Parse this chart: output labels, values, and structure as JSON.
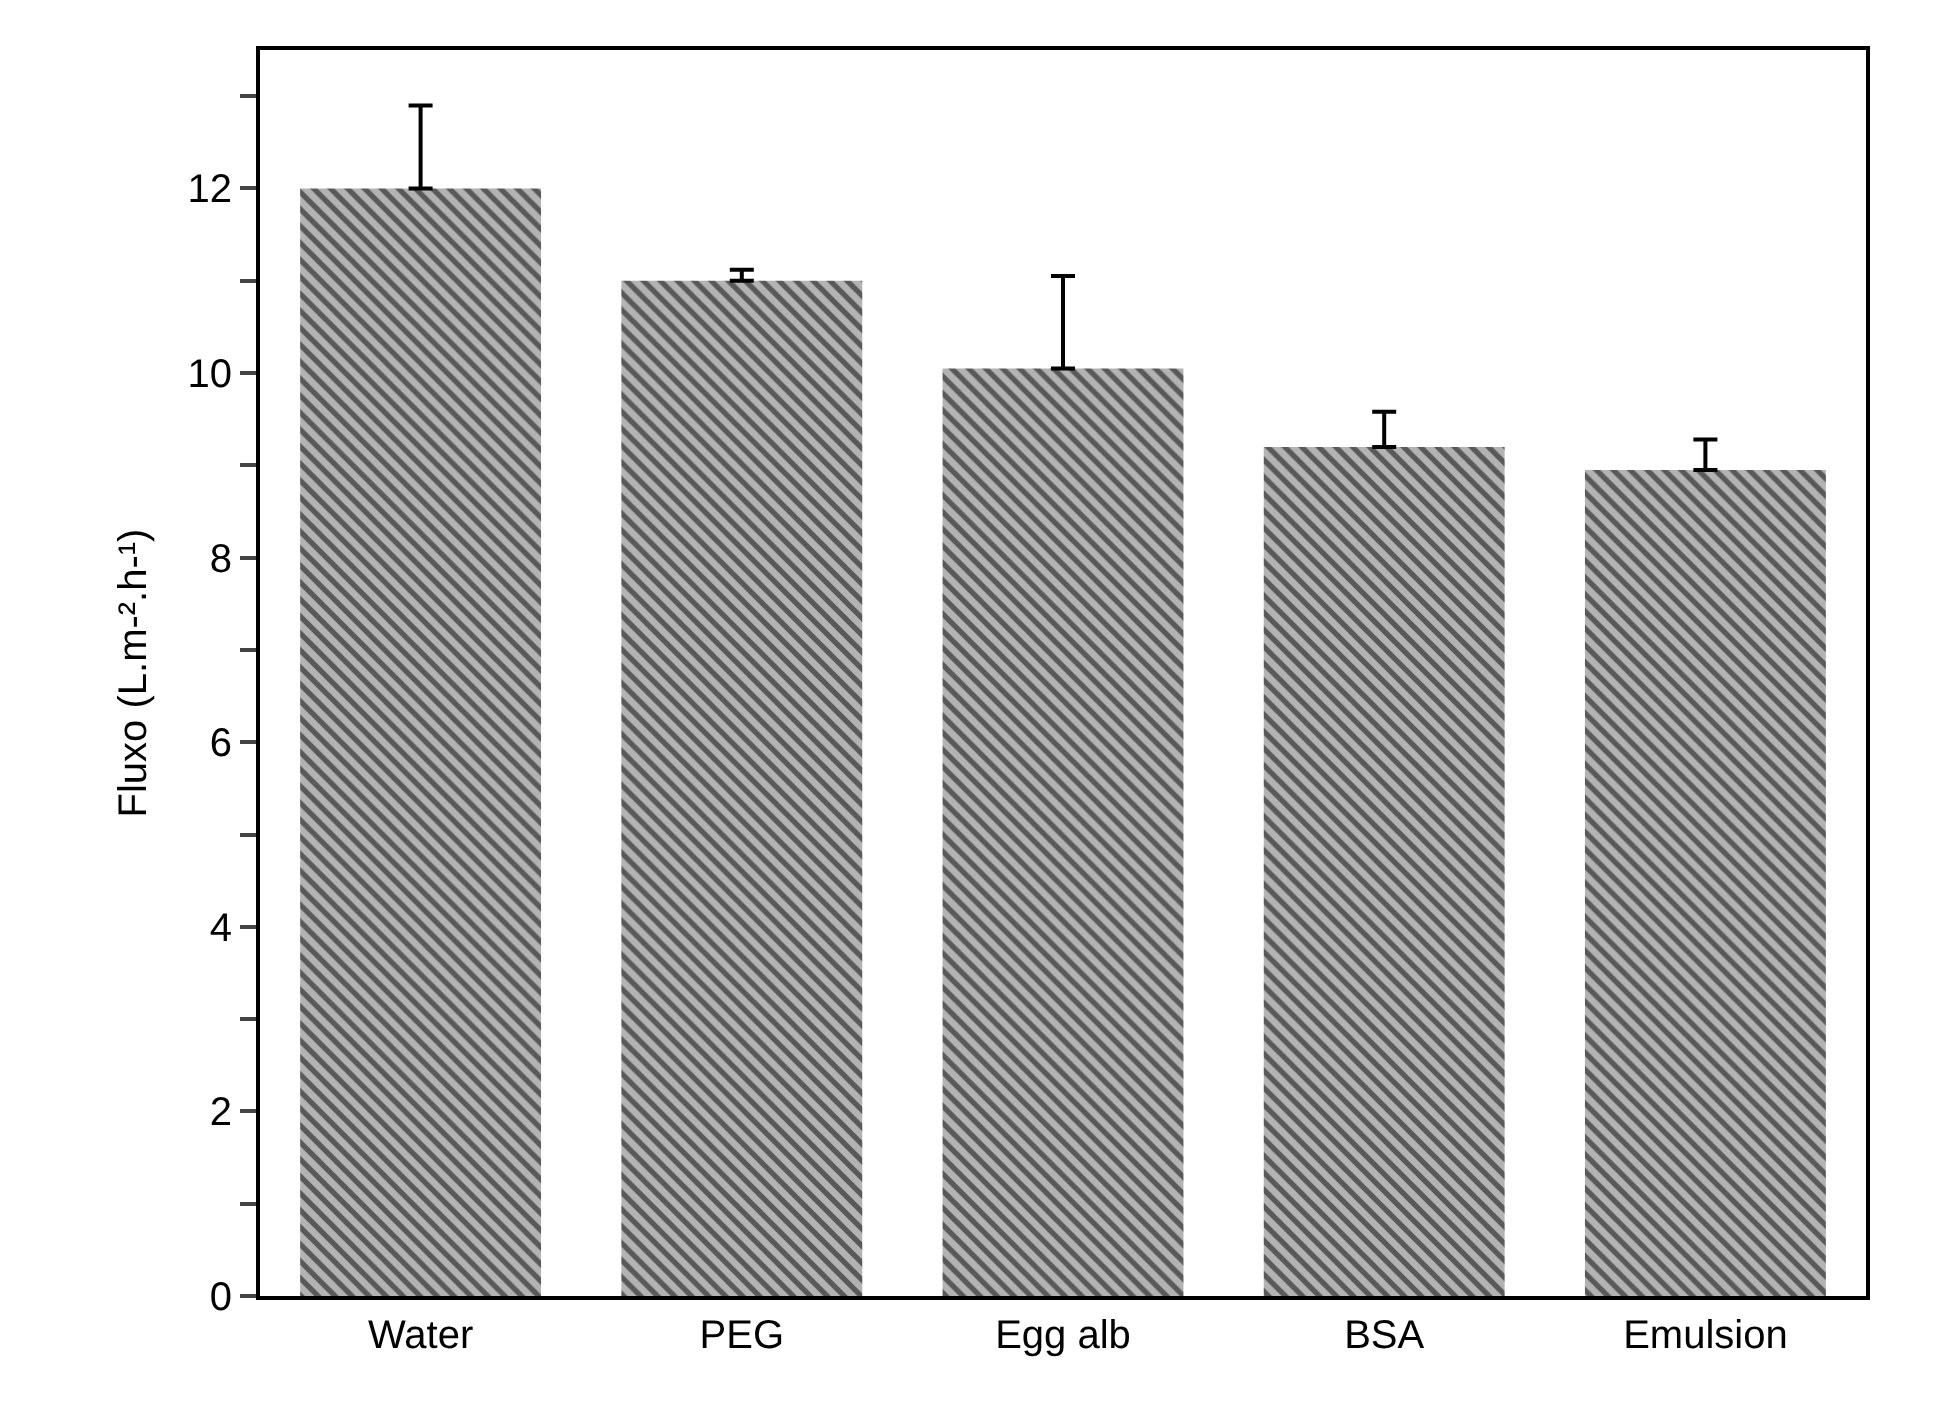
{
  "chart_data": {
    "type": "bar",
    "ylabel": "Fluxo (L.m-².h-¹)",
    "categories": [
      "Water",
      "PEG",
      "Egg alb",
      "BSA",
      "Emulsion"
    ],
    "values": [
      12.0,
      11.0,
      10.05,
      9.2,
      8.95
    ],
    "errors": [
      [
        12.0,
        12.9
      ],
      [
        11.0,
        11.12
      ],
      [
        10.05,
        11.05
      ],
      [
        9.2,
        9.58
      ],
      [
        8.95,
        9.28
      ]
    ],
    "color": "#b3b3b3",
    "ylim": [
      0,
      13.5
    ],
    "yticks": [
      0,
      {
        "value": 1,
        "label": null
      },
      2,
      {
        "value": 3,
        "label": null
      },
      4,
      {
        "value": 5,
        "label": null
      },
      6,
      {
        "value": 7,
        "label": null
      },
      8,
      {
        "value": 9,
        "label": null
      },
      10,
      {
        "value": 11,
        "label": null
      },
      12,
      {
        "value": 13,
        "label": null
      }
    ]
  }
}
